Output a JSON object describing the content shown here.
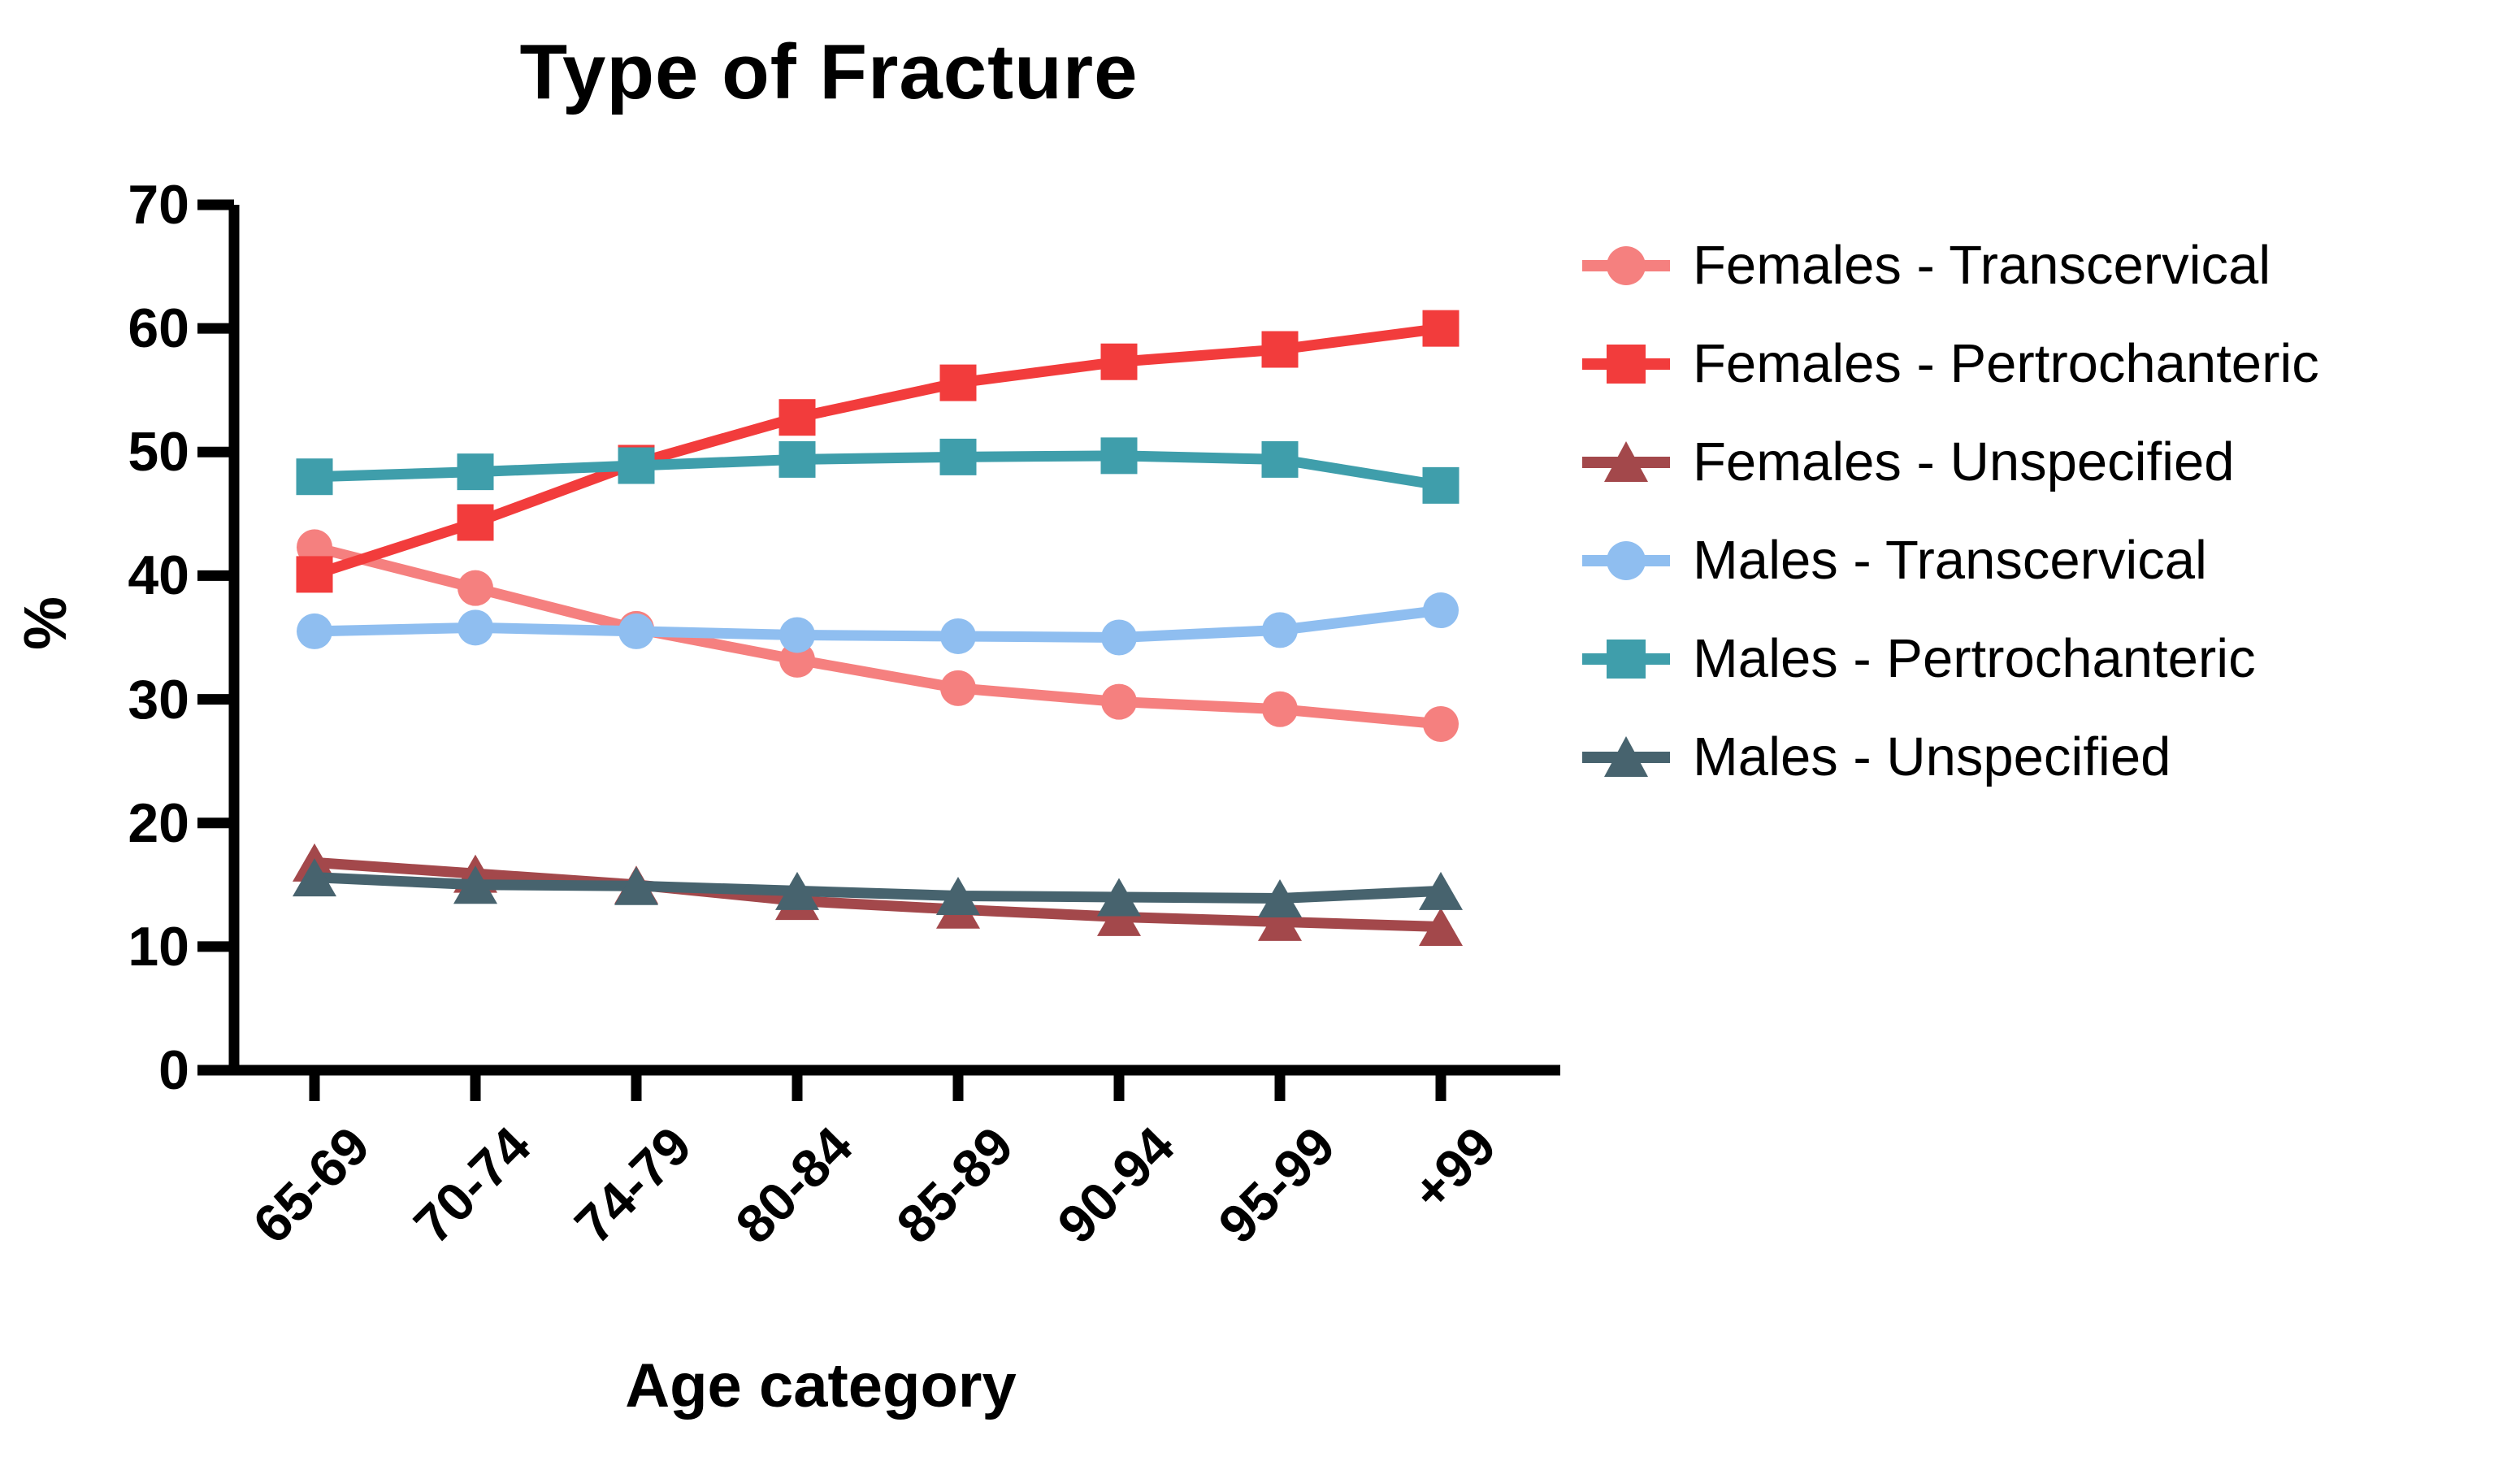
{
  "title": "Type of Fracture",
  "chart_data": {
    "type": "line",
    "title": "Type of Fracture",
    "xlabel": "Age category",
    "ylabel": "%",
    "categories": [
      "65-69",
      "70-74",
      "74-79",
      "80-84",
      "85-89",
      "90-94",
      "95-99",
      "+99"
    ],
    "y_ticks": [
      0,
      10,
      20,
      30,
      40,
      50,
      60,
      70
    ],
    "ylim": [
      0,
      70
    ],
    "grid": false,
    "legend_position": "right",
    "axis_color": "#000000",
    "series": [
      {
        "name": "Females - Transcervical",
        "color": "#F5807F",
        "marker": "circle",
        "values": [
          42.3,
          39.0,
          35.7,
          33.2,
          30.9,
          29.8,
          29.2,
          28.0
        ]
      },
      {
        "name": "Females - Pertrochanteric",
        "color": "#F23C3C",
        "marker": "square",
        "values": [
          40.1,
          44.3,
          49.1,
          52.8,
          55.6,
          57.3,
          58.3,
          60.0
        ]
      },
      {
        "name": "Females - Unspecified",
        "color": "#A3484B",
        "marker": "triangle",
        "values": [
          16.8,
          15.9,
          15.0,
          13.7,
          13.0,
          12.4,
          12.0,
          11.6
        ]
      },
      {
        "name": "Males - Transcervical",
        "color": "#8FBEF0",
        "marker": "circle",
        "values": [
          35.5,
          35.8,
          35.5,
          35.2,
          35.1,
          35.0,
          35.6,
          37.2
        ]
      },
      {
        "name": "Males - Pertrochanteric",
        "color": "#3F9EAB",
        "marker": "square",
        "values": [
          48.0,
          48.4,
          48.9,
          49.4,
          49.6,
          49.7,
          49.4,
          47.3
        ]
      },
      {
        "name": "Males - Unspecified",
        "color": "#47636E",
        "marker": "triangle",
        "values": [
          15.6,
          15.0,
          14.9,
          14.5,
          14.1,
          14.0,
          13.9,
          14.5
        ]
      }
    ]
  }
}
